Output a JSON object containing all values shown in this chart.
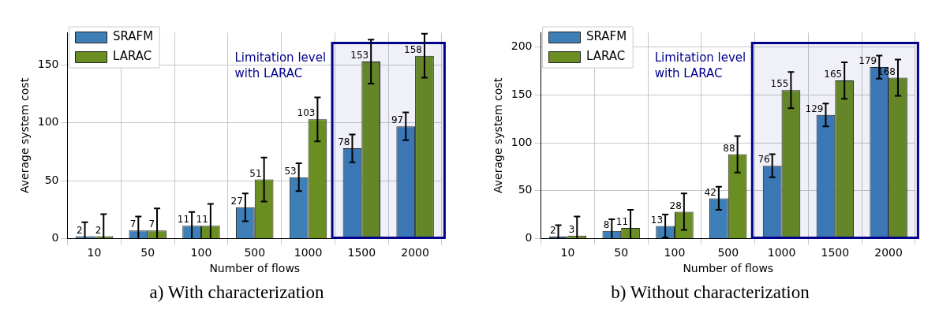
{
  "chart_data": [
    {
      "type": "bar",
      "title": "a) With characterization",
      "xlabel": "Number of flows",
      "ylabel": "Average system cost",
      "categories": [
        "10",
        "50",
        "100",
        "500",
        "1000",
        "1500",
        "2000"
      ],
      "series": [
        {
          "name": "SRAFM",
          "color": "#3f7fb8",
          "values": [
            2,
            7,
            11,
            27,
            53,
            78,
            97
          ],
          "errors": [
            [
              0,
              14
            ],
            [
              0,
              19
            ],
            [
              0,
              23
            ],
            12,
            12,
            12,
            12
          ]
        },
        {
          "name": "LARAC",
          "color": "#6b8e23",
          "values": [
            2,
            7,
            11,
            51,
            103,
            153,
            158
          ],
          "errors": [
            [
              0,
              21
            ],
            [
              0,
              26
            ],
            [
              0,
              30
            ],
            19,
            19,
            19,
            19
          ]
        }
      ],
      "ylim": [
        0,
        178
      ],
      "yticks": [
        0,
        50,
        100,
        150
      ],
      "grid": true,
      "legend": "top left",
      "data_labels": true,
      "bands": [
        {
          "axis": "x",
          "from": "1500",
          "to": "2000",
          "label": "Limitation level with LARAC",
          "color": "#00008b"
        }
      ]
    },
    {
      "type": "bar",
      "title": "b) Without characterization",
      "xlabel": "Number of flows",
      "ylabel": "Average system cost",
      "categories": [
        "10",
        "50",
        "100",
        "500",
        "1000",
        "1500",
        "2000"
      ],
      "series": [
        {
          "name": "SRAFM",
          "color": "#3f7fb8",
          "values": [
            2,
            8,
            13,
            42,
            76,
            129,
            179
          ],
          "errors": [
            [
              0,
              14
            ],
            [
              0,
              20
            ],
            12,
            12,
            12,
            12,
            12
          ]
        },
        {
          "name": "LARAC",
          "color": "#6b8e23",
          "values": [
            3,
            11,
            28,
            88,
            155,
            165,
            168
          ],
          "errors": [
            [
              0,
              23
            ],
            [
              0,
              30
            ],
            19,
            19,
            19,
            19,
            19
          ]
        }
      ],
      "ylim": [
        0,
        215
      ],
      "yticks": [
        0,
        50,
        100,
        150,
        200
      ],
      "grid": true,
      "legend": "top left",
      "data_labels": true,
      "bands": [
        {
          "axis": "x",
          "from": "1000",
          "to": "2000",
          "label": "Limitation level with LARAC",
          "color": "#00008b"
        }
      ]
    }
  ]
}
